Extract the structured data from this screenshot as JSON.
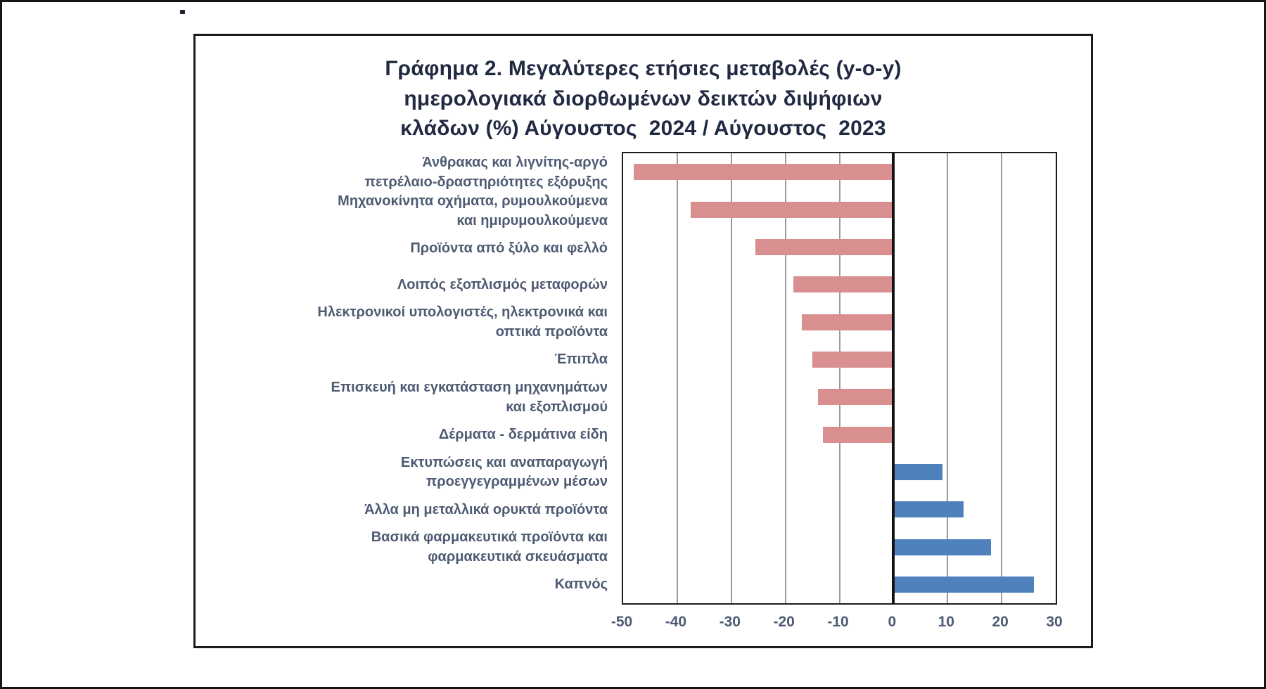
{
  "page": {
    "background": "#ffffff",
    "frame_color": "#161616"
  },
  "chart": {
    "title_lines": [
      "Γράφημα 2. Μεγαλύτερες ετήσιες μεταβολές (y-o-y)",
      "ημερολογιακά διορθωμένων δεικτών διψήφιων",
      "κλάδων (%) Αύγουστος  2024 / Αύγουστος  2023"
    ]
  },
  "chart_data": {
    "type": "bar",
    "orientation": "horizontal",
    "title": "Γράφημα 2. Μεγαλύτερες ετήσιες μεταβολές (y-o-y) ημερολογιακά διορθωμένων δεικτών διψήφιων κλάδων (%) Αύγουστος 2024 / Αύγουστος 2023",
    "categories": [
      "Άνθρακας και λιγνίτης-αργό πετρέλαιο-δραστηριότητες εξόρυξης",
      "Μηχανοκίνητα οχήματα, ρυμουλκούμενα και ημιρυμουλκούμενα",
      "Προϊόντα από ξύλο και φελλό",
      "Λοιπός εξοπλισμός μεταφορών",
      "Ηλεκτρονικοί υπολογιστές, ηλεκτρονικά και οπτικά προϊόντα",
      "Έπιπλα",
      "Επισκευή και εγκατάσταση μηχανημάτων και εξοπλισμού",
      "Δέρματα - δερμάτινα είδη",
      "Εκτυπώσεις και αναπαραγωγή προεγγεγραμμένων μέσων",
      "Άλλα μη μεταλλικά ορυκτά προϊόντα",
      "Βασικά φαρμακευτικά προϊόντα και φαρμακευτικά σκευάσματα",
      "Καπνός"
    ],
    "label_lines": [
      [
        "Άνθρακας και λιγνίτης-αργό",
        "πετρέλαιο-δραστηριότητες εξόρυξης"
      ],
      [
        "Μηχανοκίνητα οχήματα, ρυμουλκούμενα",
        "και ημιρυμουλκούμενα"
      ],
      [
        "Προϊόντα από ξύλο και φελλό"
      ],
      [
        "Λοιπός εξοπλισμός μεταφορών"
      ],
      [
        "Ηλεκτρονικοί υπολογιστές, ηλεκτρονικά και",
        "οπτικά προϊόντα"
      ],
      [
        "Έπιπλα"
      ],
      [
        "Επισκευή και εγκατάσταση μηχανημάτων",
        "και εξοπλισμού"
      ],
      [
        "Δέρματα - δερμάτινα είδη"
      ],
      [
        "Εκτυπώσεις και αναπαραγωγή",
        "προεγγεγραμμένων μέσων"
      ],
      [
        "Άλλα μη μεταλλικά ορυκτά προϊόντα"
      ],
      [
        "Βασικά φαρμακευτικά προϊόντα και",
        "φαρμακευτικά σκευάσματα"
      ],
      [
        "Καπνός"
      ]
    ],
    "values": [
      -48,
      -37.5,
      -25.5,
      -18.5,
      -17,
      -15,
      -14,
      -13,
      9,
      13,
      18,
      26
    ],
    "xlim": [
      -50,
      30
    ],
    "x_ticks": [
      -50,
      -40,
      -30,
      -20,
      -10,
      0,
      10,
      20,
      30
    ],
    "x_tick_labels": [
      "-50",
      "-40",
      "-30",
      "-20",
      "-10",
      "0",
      "10",
      "20",
      "30"
    ],
    "grid": true,
    "legend": "none",
    "colors": {
      "negative": "#D98E90",
      "positive": "#4F81BD",
      "gridline": "#9a9a9a",
      "axis": "#121212",
      "label_text": "#4e5b73",
      "title_text": "#212a42"
    }
  }
}
